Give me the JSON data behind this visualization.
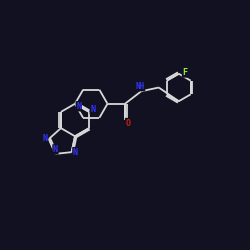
{
  "background_color": "#111122",
  "bond_color": "#d8d8d8",
  "atom_colors": {
    "N": "#3333ff",
    "O": "#cc2200",
    "F": "#99ee33",
    "C": "#d8d8d8"
  },
  "figsize": [
    2.5,
    2.5
  ],
  "dpi": 100
}
